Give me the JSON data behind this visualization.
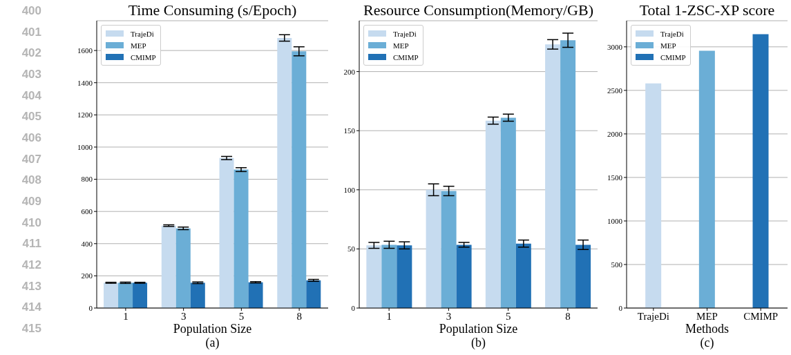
{
  "chart_data": [
    {
      "type": "bar",
      "title": "Time Consuming (s/Epoch)",
      "xlabel": "Population Size",
      "categories": [
        "1",
        "3",
        "5",
        "8"
      ],
      "series": [
        {
          "name": "TrajeDi",
          "color": "#c6dbef",
          "values": [
            157,
            512,
            932,
            1678
          ],
          "errors": [
            3,
            5,
            10,
            20
          ]
        },
        {
          "name": "MEP",
          "color": "#6baed6",
          "values": [
            157,
            495,
            860,
            1595
          ],
          "errors": [
            4,
            8,
            12,
            28
          ]
        },
        {
          "name": "CMIMP",
          "color": "#2171b5",
          "values": [
            157,
            157,
            160,
            172
          ],
          "errors": [
            3,
            5,
            4,
            6
          ]
        }
      ],
      "ylim": [
        0,
        1785
      ],
      "yticks": [
        0,
        200,
        400,
        600,
        800,
        1000,
        1200,
        1400,
        1600
      ],
      "grid": "y",
      "legend": "top left",
      "annotations": [
        "(a)",
        "400",
        "401",
        "402",
        "403",
        "404",
        "405",
        "406",
        "407",
        "408",
        "409",
        "410",
        "411",
        "412",
        "413",
        "414",
        "415"
      ]
    },
    {
      "type": "bar",
      "title": "Resource Consumption(Memory/GB)",
      "xlabel": "Population Size",
      "categories": [
        "1",
        "3",
        "5",
        "8"
      ],
      "series": [
        {
          "name": "TrajeDi",
          "color": "#c6dbef",
          "values": [
            53,
            100,
            158.5,
            223
          ],
          "errors": [
            2.5,
            5,
            3,
            4
          ]
        },
        {
          "name": "MEP",
          "color": "#6baed6",
          "values": [
            53.5,
            99,
            161,
            226.5
          ],
          "errors": [
            3,
            4,
            3,
            6
          ]
        },
        {
          "name": "CMIMP",
          "color": "#2171b5",
          "values": [
            53,
            53.5,
            54.5,
            53.5
          ],
          "errors": [
            3,
            2,
            3,
            4
          ]
        }
      ],
      "ylim": [
        0,
        243
      ],
      "yticks": [
        0,
        50,
        100,
        150,
        200
      ],
      "grid": "y",
      "legend": "top left",
      "annotations": [
        "(b)"
      ]
    },
    {
      "type": "bar",
      "title": "Total 1-ZSC-XP score",
      "xlabel": "Methods",
      "categories": [
        "TrajeDi",
        "MEP",
        "CMIMP"
      ],
      "series": [
        {
          "name": "TrajeDi",
          "color": "#c6dbef",
          "values": [
            2580,
            null,
            null
          ]
        },
        {
          "name": "MEP",
          "color": "#6baed6",
          "values": [
            null,
            2955,
            null
          ]
        },
        {
          "name": "CMIMP",
          "color": "#2171b5",
          "values": [
            null,
            null,
            3145
          ]
        }
      ],
      "stacked": true,
      "ylim": [
        0,
        3300
      ],
      "yticks": [
        0,
        500,
        1000,
        1500,
        2000,
        2500,
        3000
      ],
      "grid": "y",
      "legend": "top left",
      "annotations": [
        "(c)"
      ]
    }
  ]
}
